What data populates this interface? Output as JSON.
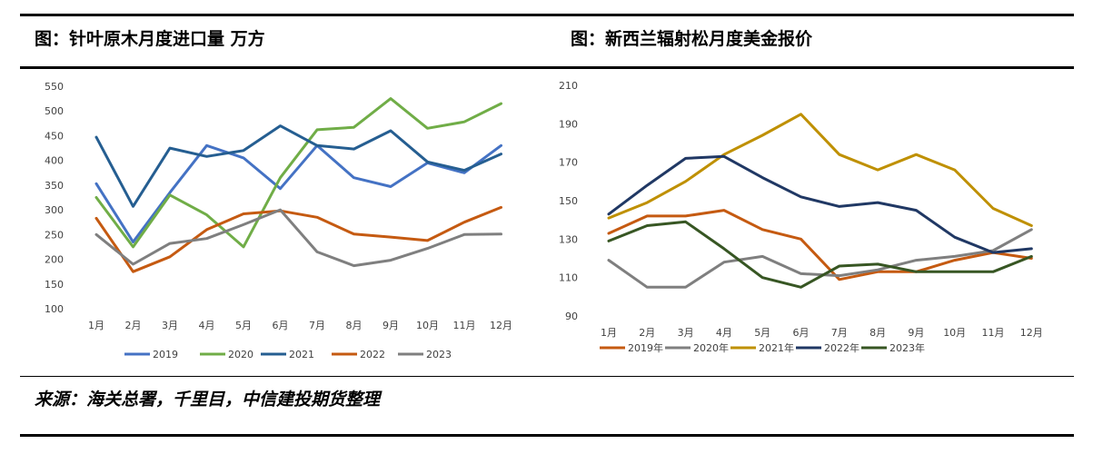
{
  "header": {
    "left_title": "图：针叶原木月度进口量 万方",
    "right_title": "图：新西兰辐射松月度美金报价"
  },
  "footer": {
    "source": "来源：海关总署，千里目，中信建投期货整理"
  },
  "chart_data": [
    {
      "type": "line",
      "title": "图：针叶原木月度进口量 万方",
      "categories": [
        "1月",
        "2月",
        "3月",
        "4月",
        "5月",
        "6月",
        "7月",
        "8月",
        "9月",
        "10月",
        "11月",
        "12月"
      ],
      "ylim": [
        100,
        550
      ],
      "yticks": [
        100,
        150,
        200,
        250,
        300,
        350,
        400,
        450,
        500,
        550
      ],
      "grid": false,
      "legend_position": "bottom",
      "series": [
        {
          "name": "2019",
          "color": "#4472C4",
          "values": [
            353,
            235,
            335,
            430,
            405,
            343,
            430,
            365,
            347,
            395,
            375,
            430
          ]
        },
        {
          "name": "2020",
          "color": "#70AD47",
          "values": [
            325,
            225,
            330,
            290,
            225,
            365,
            462,
            467,
            525,
            465,
            478,
            515
          ]
        },
        {
          "name": "2021",
          "color": "#255E91",
          "values": [
            447,
            307,
            425,
            408,
            420,
            470,
            430,
            423,
            460,
            397,
            380,
            413
          ]
        },
        {
          "name": "2022",
          "color": "#C55A11",
          "values": [
            283,
            175,
            205,
            260,
            292,
            298,
            285,
            251,
            245,
            238,
            275,
            305
          ]
        },
        {
          "name": "2023",
          "color": "#7F7F7F",
          "values": [
            250,
            190,
            232,
            242,
            270,
            300,
            215,
            187,
            198,
            222,
            250,
            251
          ]
        }
      ]
    },
    {
      "type": "line",
      "title": "图：新西兰辐射松月度美金报价",
      "categories": [
        "1月",
        "2月",
        "3月",
        "4月",
        "5月",
        "6月",
        "7月",
        "8月",
        "9月",
        "10月",
        "11月",
        "12月"
      ],
      "ylim": [
        90,
        210
      ],
      "yticks": [
        90,
        110,
        130,
        150,
        170,
        190,
        210
      ],
      "grid": false,
      "legend_position": "bottom-left",
      "series": [
        {
          "name": "2019年",
          "color": "#C55A11",
          "values": [
            133,
            142,
            142,
            145,
            135,
            130,
            109,
            113,
            113,
            119,
            123,
            120
          ]
        },
        {
          "name": "2020年",
          "color": "#7F7F7F",
          "values": [
            119,
            105,
            105,
            118,
            121,
            112,
            111,
            114,
            119,
            121,
            124,
            135
          ]
        },
        {
          "name": "2021年",
          "color": "#BF9000",
          "values": [
            141,
            149,
            160,
            174,
            184,
            195,
            174,
            166,
            174,
            166,
            146,
            137
          ]
        },
        {
          "name": "2022年",
          "color": "#203864",
          "values": [
            143,
            158,
            172,
            173,
            162,
            152,
            147,
            149,
            145,
            131,
            123,
            125
          ]
        },
        {
          "name": "2023年",
          "color": "#375623",
          "values": [
            129,
            137,
            139,
            125,
            110,
            105,
            116,
            117,
            113,
            113,
            113,
            121
          ]
        }
      ]
    }
  ]
}
